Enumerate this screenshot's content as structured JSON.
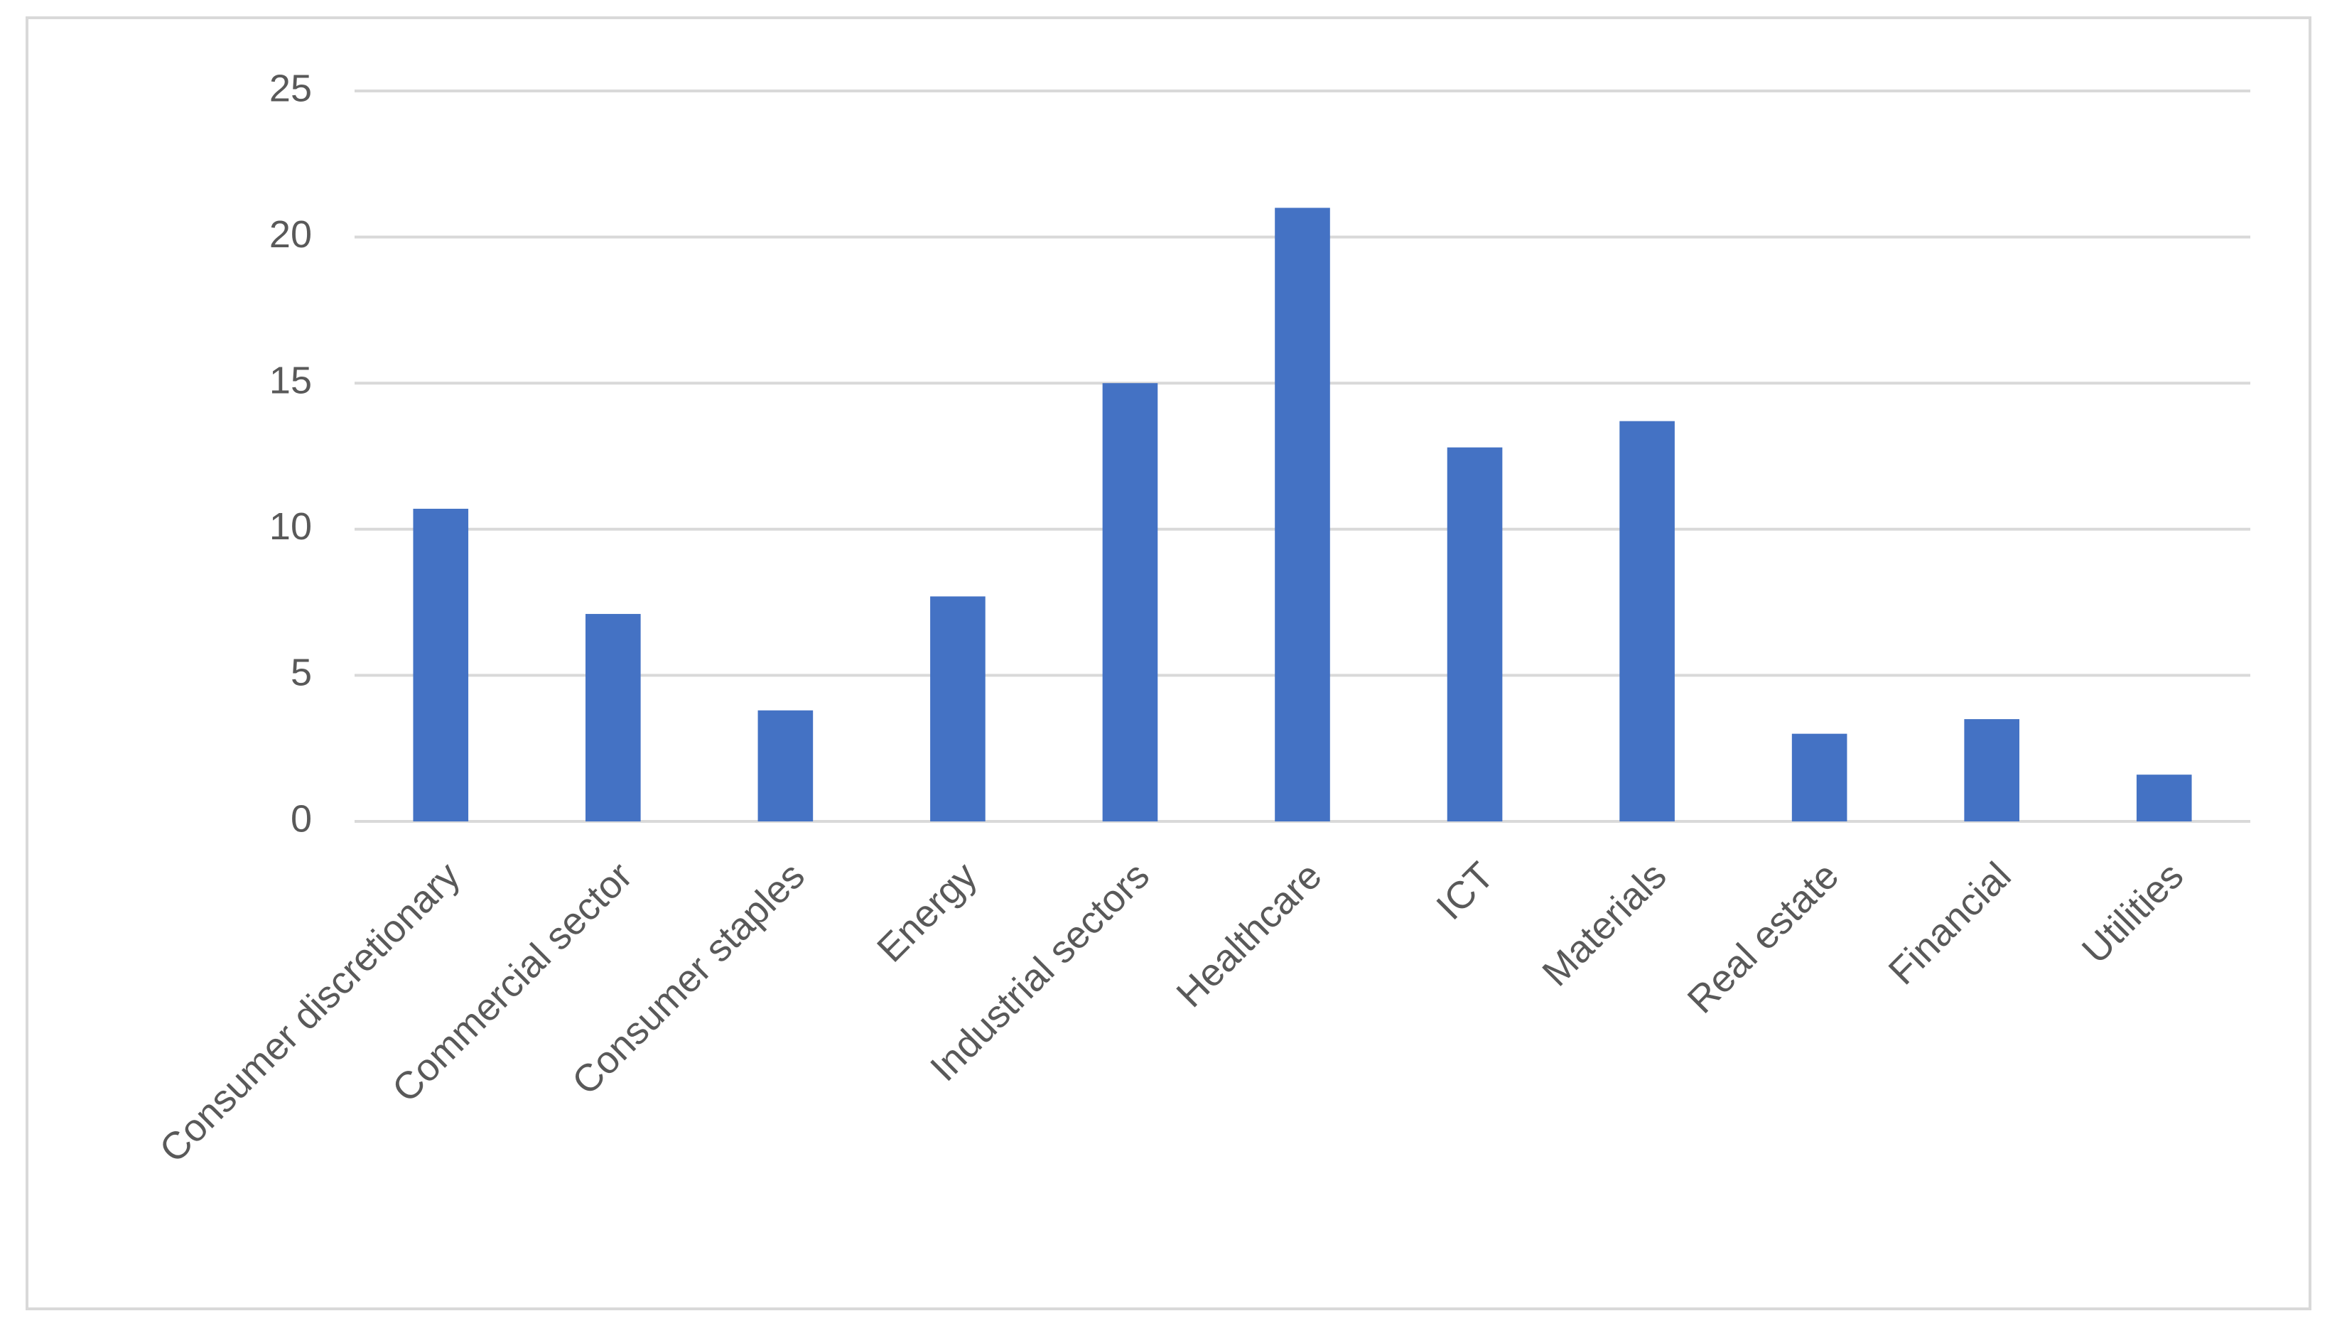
{
  "chart_data": {
    "type": "bar",
    "categories": [
      "Consumer discretionary",
      "Commercial sector",
      "Consumer staples",
      "Energy",
      "Industrial sectors",
      "Healthcare",
      "ICT",
      "Materials",
      "Real estate",
      "Financial",
      "Utilities"
    ],
    "values": [
      10.7,
      7.1,
      3.8,
      7.7,
      15.0,
      21.0,
      12.8,
      13.7,
      3.0,
      3.5,
      1.6
    ],
    "color": "#4472c4",
    "ylim": [
      0,
      25
    ],
    "yticks": [
      0,
      5,
      10,
      15,
      20,
      25
    ],
    "grid": true
  }
}
